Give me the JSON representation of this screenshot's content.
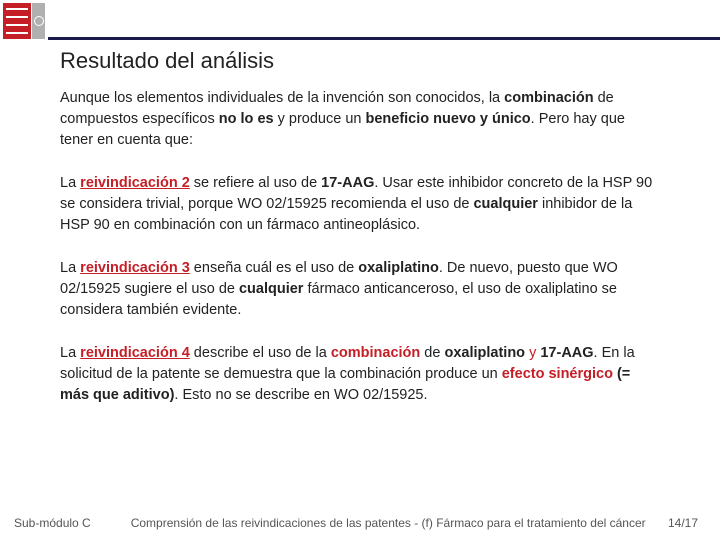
{
  "title": "Resultado del análisis",
  "p1": {
    "t1": "Aunque los elementos individuales de la invención son conocidos, la ",
    "t2": "combinación",
    "t3": " de compuestos específicos ",
    "t4": "no lo es",
    "t5": " y produce un ",
    "t6": "beneficio nuevo y único",
    "t7": ". Pero hay que tener en cuenta que:"
  },
  "p2": {
    "t1": "La ",
    "t2": "reivindicación 2",
    "t3": " se refiere al uso de ",
    "t4": "17-AAG",
    "t5": ". Usar este inhibidor concreto de la HSP 90 se considera trivial, porque WO 02/15925 recomienda el uso de ",
    "t6": "cualquier",
    "t7": " inhibidor de la HSP 90 en combinación con un fármaco antineoplásico."
  },
  "p3": {
    "t1": "La ",
    "t2": "reivindicación 3",
    "t3": " enseña cuál es el uso de ",
    "t4": "oxaliplatino",
    "t5": ". De nuevo, puesto que WO 02/15925 sugiere el uso de ",
    "t6": "cualquier",
    "t7": " fármaco anticanceroso, el uso de oxaliplatino se considera también evidente."
  },
  "p4": {
    "t1": "La ",
    "t2": "reivindicación 4",
    "t3": " describe el uso de la ",
    "t4": "combinación",
    "t5": " de ",
    "t6": "oxaliplatino",
    "t7": " y ",
    "t8": "17-AAG",
    "t9": ". En la solicitud de la patente se demuestra que la combinación produce un ",
    "t10": "efecto sinérgico",
    "t11": " ",
    "t12": "(= más que aditivo)",
    "t13": ". Esto no se describe en WO 02/15925."
  },
  "footer": {
    "left": "Sub-módulo C",
    "mid": "Comprensión de las reivindicaciones de las patentes - (f) Fármaco para el tratamiento del cáncer",
    "right": "14/17"
  },
  "colors": {
    "accent": "#c41e26",
    "rule": "#1a1a4a"
  }
}
